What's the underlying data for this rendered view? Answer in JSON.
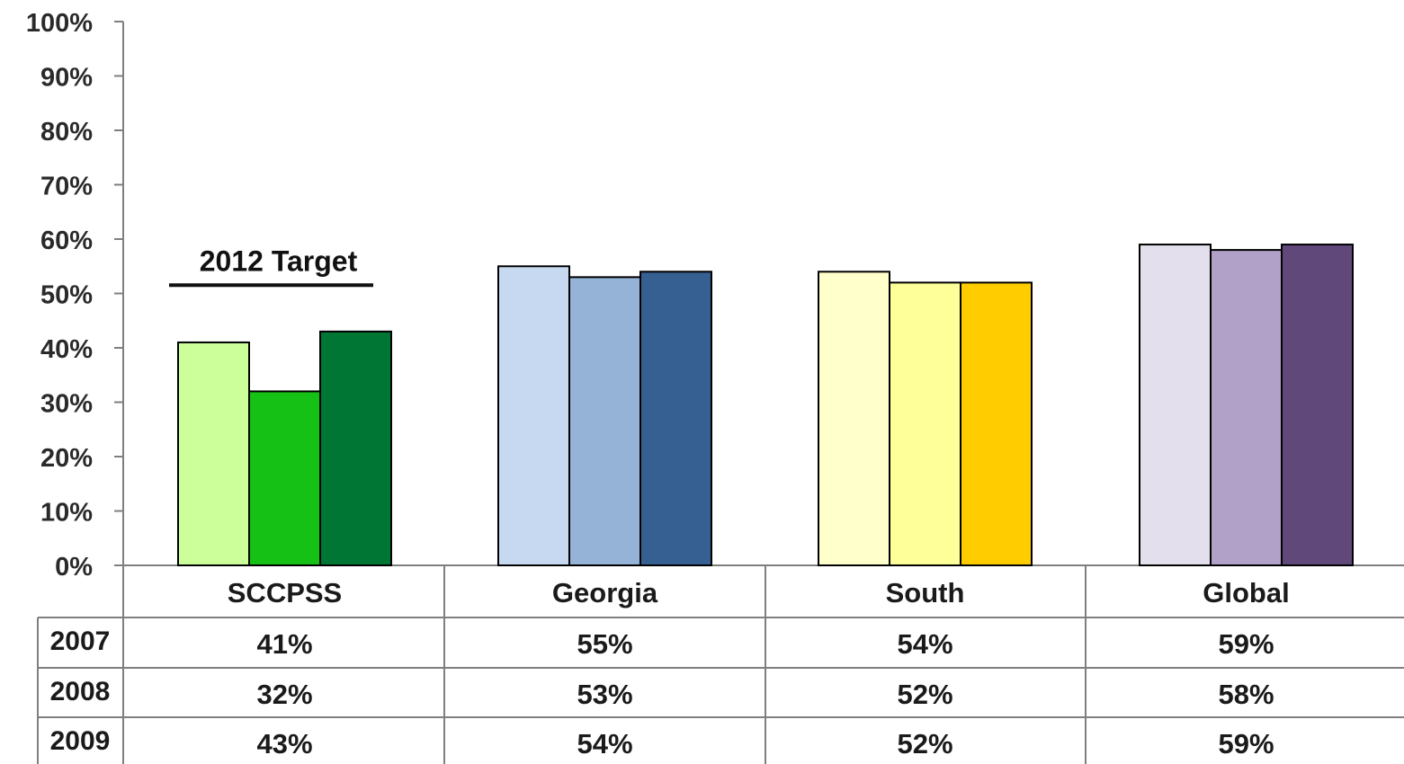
{
  "chart_data": {
    "type": "bar",
    "categories": [
      "SCCPSS",
      "Georgia",
      "South",
      "Global"
    ],
    "series": [
      {
        "name": "2007",
        "values": [
          41,
          55,
          54,
          59
        ]
      },
      {
        "name": "2008",
        "values": [
          32,
          53,
          52,
          58
        ]
      },
      {
        "name": "2009",
        "values": [
          43,
          54,
          52,
          59
        ]
      }
    ],
    "data_table": {
      "rows": [
        {
          "label": "2007",
          "cells": [
            "41%",
            "55%",
            "54%",
            "59%"
          ]
        },
        {
          "label": "2008",
          "cells": [
            "32%",
            "53%",
            "52%",
            "58%"
          ]
        },
        {
          "label": "2009",
          "cells": [
            "43%",
            "54%",
            "52%",
            "59%"
          ]
        }
      ]
    },
    "yticks": [
      "0%",
      "10%",
      "20%",
      "30%",
      "40%",
      "50%",
      "60%",
      "70%",
      "80%",
      "90%",
      "100%"
    ],
    "ylim": [
      0,
      100
    ],
    "annotation": {
      "text": "2012 Target",
      "value": 55,
      "category": "SCCPSS"
    },
    "grid": false,
    "legend": "none",
    "colors": [
      [
        "#ccff99",
        "#16c116",
        "#007635"
      ],
      [
        "#c6d9f1",
        "#95b3d7",
        "#366092"
      ],
      [
        "#ffffcc",
        "#ffff99",
        "#ffcc00"
      ],
      [
        "#e4dfec",
        "#b1a0c7",
        "#60497a"
      ]
    ]
  }
}
